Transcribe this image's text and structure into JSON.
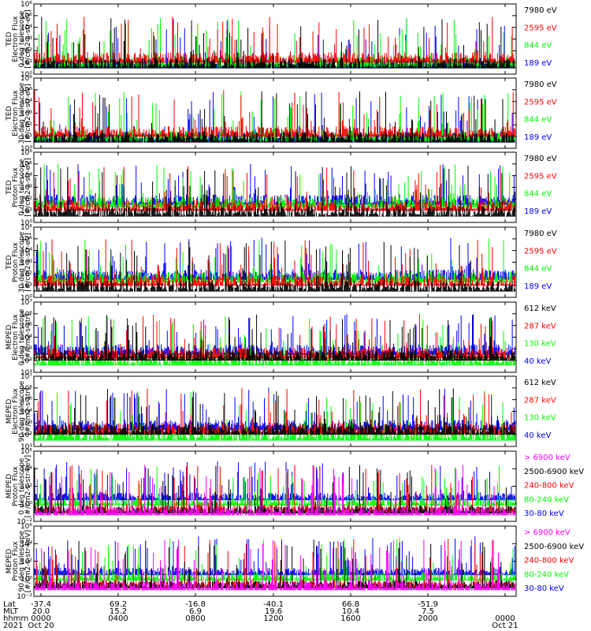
{
  "colors": {
    "blue": "#0000ff",
    "red": "#ff0000",
    "green": "#00ff00",
    "black": "#000000",
    "magenta": "#ff00ff"
  },
  "chart_data": [
    {
      "type": "line",
      "ylabel": [
        "TED",
        "Electron Flux",
        "0 deg telescope",
        "[#/cm2-s-str-eV]"
      ],
      "yscale": "log",
      "ylim_exp": [
        0,
        6
      ],
      "yticks": [
        "10⁰",
        "10¹",
        "10²",
        "10³",
        "10⁴",
        "10⁵",
        "10⁶"
      ],
      "series": [
        {
          "name": "7980 eV",
          "color": "#000000"
        },
        {
          "name": "2595 eV",
          "color": "#ff0000"
        },
        {
          "name": "844 eV",
          "color": "#00ff00"
        },
        {
          "name": "189 eV",
          "color": "#0000ff"
        }
      ],
      "base_exp": [
        0.5,
        1.0,
        0.6,
        0.5
      ]
    },
    {
      "type": "line",
      "ylabel": [
        "TED",
        "Electron Flux",
        "30 deg telescope",
        "[#/cm2-s-str-eV]"
      ],
      "yscale": "log",
      "ylim_exp": [
        0,
        6
      ],
      "yticks": [
        "10⁰",
        "10¹",
        "10²",
        "10³",
        "10⁴",
        "10⁵",
        "10⁶"
      ],
      "series": [
        {
          "name": "7980 eV",
          "color": "#000000"
        },
        {
          "name": "2595 eV",
          "color": "#ff0000"
        },
        {
          "name": "844 eV",
          "color": "#00ff00"
        },
        {
          "name": "189 eV",
          "color": "#0000ff"
        }
      ],
      "base_exp": [
        0.5,
        1.0,
        0.6,
        0.5
      ]
    },
    {
      "type": "line",
      "ylabel": [
        "TED",
        "Proton Flux",
        "0 deg telescope",
        "[#/cm2-s-str-eV]"
      ],
      "yscale": "log",
      "ylim_exp": [
        0,
        6
      ],
      "yticks": [
        "10⁰",
        "10¹",
        "10²",
        "10³",
        "10⁴",
        "10⁵",
        "10⁶"
      ],
      "series": [
        {
          "name": "7980 eV",
          "color": "#000000"
        },
        {
          "name": "2595 eV",
          "color": "#ff0000"
        },
        {
          "name": "844 eV",
          "color": "#00ff00"
        },
        {
          "name": "189 eV",
          "color": "#0000ff"
        }
      ],
      "base_exp": [
        0.5,
        1.0,
        1.3,
        1.5
      ]
    },
    {
      "type": "line",
      "ylabel": [
        "TED",
        "Proton Flux",
        "30 deg telescope",
        "[#/cm2-s-str-eV]"
      ],
      "yscale": "log",
      "ylim_exp": [
        0,
        6
      ],
      "yticks": [
        "10⁰",
        "10¹",
        "10²",
        "10³",
        "10⁴",
        "10⁵",
        "10⁶"
      ],
      "series": [
        {
          "name": "7980 eV",
          "color": "#000000"
        },
        {
          "name": "2595 eV",
          "color": "#ff0000"
        },
        {
          "name": "844 eV",
          "color": "#00ff00"
        },
        {
          "name": "189 eV",
          "color": "#0000ff"
        }
      ],
      "base_exp": [
        0.5,
        1.0,
        1.3,
        1.5
      ]
    },
    {
      "type": "line",
      "ylabel": [
        "MEPED",
        "Electron Flux",
        "0 deg telescope",
        "[#/cm2-s-str]"
      ],
      "yscale": "log",
      "ylim_exp": [
        1,
        7
      ],
      "yticks": [
        "10¹",
        "10²",
        "10³",
        "10⁴",
        "10⁵",
        "10⁶",
        "10⁷"
      ],
      "series": [
        {
          "name": "612 keV",
          "color": "#000000"
        },
        {
          "name": "287 keV",
          "color": "#ff0000"
        },
        {
          "name": "130 keV",
          "color": "#00ff00"
        },
        {
          "name": "40 keV",
          "color": "#0000ff"
        }
      ],
      "base_exp": [
        2.0,
        2.2,
        1.6,
        2.5
      ]
    },
    {
      "type": "line",
      "ylabel": [
        "MEPED",
        "Electron Flux",
        "90 deg telescope",
        "[#/cm2-s-str]"
      ],
      "yscale": "log",
      "ylim_exp": [
        1,
        7
      ],
      "yticks": [
        "10¹",
        "10²",
        "10³",
        "10⁴",
        "10⁵",
        "10⁶",
        "10⁷"
      ],
      "series": [
        {
          "name": "612 keV",
          "color": "#000000"
        },
        {
          "name": "287 keV",
          "color": "#ff0000"
        },
        {
          "name": "130 keV",
          "color": "#00ff00"
        },
        {
          "name": "40 keV",
          "color": "#0000ff"
        }
      ],
      "base_exp": [
        2.0,
        2.1,
        1.5,
        2.4
      ]
    },
    {
      "type": "line",
      "ylabel": [
        "MEPED",
        "Proton Flux",
        "0 deg telescope",
        "[#/cm2-s-str-keV]"
      ],
      "yscale": "log",
      "ylim_exp": [
        -2,
        6
      ],
      "yticks": [
        "10⁻²",
        "10⁰",
        "10²",
        "10⁴",
        "10⁶"
      ],
      "series": [
        {
          "name": "> 6900 keV",
          "color": "#ff00ff"
        },
        {
          "name": "2500-6900 keV",
          "color": "#000000"
        },
        {
          "name": "240-800 keV",
          "color": "#ff0000"
        },
        {
          "name": "80-240 keV",
          "color": "#00ff00"
        },
        {
          "name": "30-80 keV",
          "color": "#0000ff"
        }
      ],
      "base_exp": [
        -1.3,
        -1.1,
        -1.0,
        -0.2,
        0.4
      ]
    },
    {
      "type": "line",
      "ylabel": [
        "MEPED",
        "Proton Flux",
        "90 deg telescope",
        "[#/cm2-s-str-keV]"
      ],
      "yscale": "log",
      "ylim_exp": [
        -2,
        6
      ],
      "yticks": [
        "10⁻²",
        "10⁰",
        "10²",
        "10⁴",
        "10⁶"
      ],
      "series": [
        {
          "name": "> 6900 keV",
          "color": "#ff00ff"
        },
        {
          "name": "2500-6900 keV",
          "color": "#000000"
        },
        {
          "name": "240-800 keV",
          "color": "#ff0000"
        },
        {
          "name": "80-240 keV",
          "color": "#00ff00"
        },
        {
          "name": "30-80 keV",
          "color": "#0000ff"
        }
      ],
      "base_exp": [
        -1.3,
        -1.1,
        -1.0,
        -0.2,
        0.4
      ]
    }
  ],
  "x_axis": {
    "row_labels": [
      "Lat",
      "MLT",
      "hhmm",
      "2021"
    ],
    "columns": [
      {
        "lat": "-37.4",
        "mlt": "20.0",
        "hhmm": "0000",
        "date": "Oct 20"
      },
      {
        "lat": "69.2",
        "mlt": "15.2",
        "hhmm": "0400",
        "date": ""
      },
      {
        "lat": "-16.8",
        "mlt": "6.9",
        "hhmm": "0800",
        "date": ""
      },
      {
        "lat": "-40.1",
        "mlt": "19.6",
        "hhmm": "1200",
        "date": ""
      },
      {
        "lat": "66.8",
        "mlt": "10.4",
        "hhmm": "1600",
        "date": ""
      },
      {
        "lat": "-51.9",
        "mlt": "7.5",
        "hhmm": "2000",
        "date": ""
      },
      {
        "lat": "",
        "mlt": "",
        "hhmm": "0000",
        "date": "Oct 21"
      }
    ]
  }
}
